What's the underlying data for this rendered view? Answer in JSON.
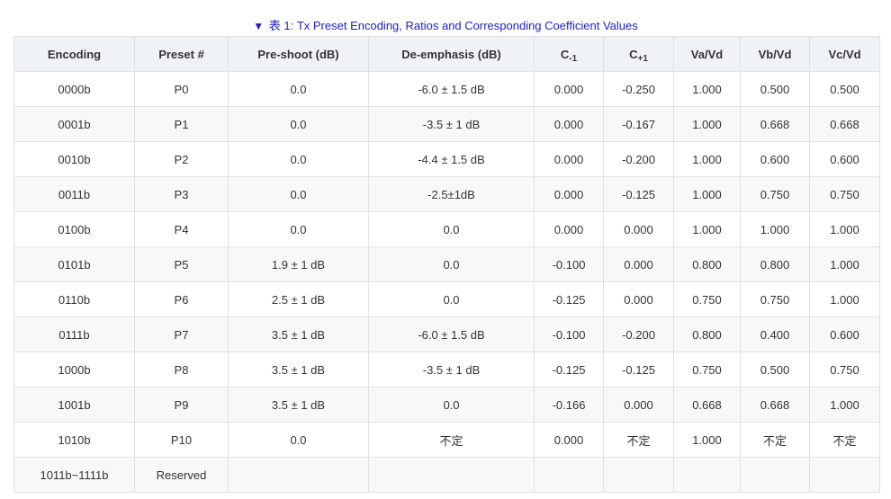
{
  "caption": {
    "arrow": "▼",
    "text": "表 1: Tx Preset Encoding, Ratios and Corresponding Coefficient Values"
  },
  "table": {
    "headers": {
      "encoding": "Encoding",
      "preset": "Preset #",
      "preshoot": "Pre-shoot (dB)",
      "deemphasis": "De-emphasis (dB)",
      "cminus_base": "C",
      "cminus_sub": "-1",
      "cplus_base": "C",
      "cplus_sub": "+1",
      "vavd": "Va/Vd",
      "vbvd": "Vb/Vd",
      "vcvd": "Vc/Vd"
    },
    "rows": [
      [
        "0000b",
        "P0",
        "0.0",
        "-6.0 ± 1.5 dB",
        "0.000",
        "-0.250",
        "1.000",
        "0.500",
        "0.500"
      ],
      [
        "0001b",
        "P1",
        "0.0",
        "-3.5 ± 1 dB",
        "0.000",
        "-0.167",
        "1.000",
        "0.668",
        "0.668"
      ],
      [
        "0010b",
        "P2",
        "0.0",
        "-4.4 ± 1.5 dB",
        "0.000",
        "-0.200",
        "1.000",
        "0.600",
        "0.600"
      ],
      [
        "0011b",
        "P3",
        "0.0",
        "-2.5±1dB",
        "0.000",
        "-0.125",
        "1.000",
        "0.750",
        "0.750"
      ],
      [
        "0100b",
        "P4",
        "0.0",
        "0.0",
        "0.000",
        "0.000",
        "1.000",
        "1.000",
        "1.000"
      ],
      [
        "0101b",
        "P5",
        "1.9 ± 1 dB",
        "0.0",
        "-0.100",
        "0.000",
        "0.800",
        "0.800",
        "1.000"
      ],
      [
        "0110b",
        "P6",
        "2.5 ± 1 dB",
        "0.0",
        "-0.125",
        "0.000",
        "0.750",
        "0.750",
        "1.000"
      ],
      [
        "0111b",
        "P7",
        "3.5 ± 1 dB",
        "-6.0 ± 1.5 dB",
        "-0.100",
        "-0.200",
        "0.800",
        "0.400",
        "0.600"
      ],
      [
        "1000b",
        "P8",
        "3.5 ± 1 dB",
        "-3.5 ± 1 dB",
        "-0.125",
        "-0.125",
        "0.750",
        "0.500",
        "0.750"
      ],
      [
        "1001b",
        "P9",
        "3.5 ± 1 dB",
        "0.0",
        "-0.166",
        "0.000",
        "0.668",
        "0.668",
        "1.000"
      ],
      [
        "1010b",
        "P10",
        "0.0",
        "不定",
        "0.000",
        "不定",
        "1.000",
        "不定",
        "不定"
      ],
      [
        "1011b~1111b",
        "Reserved",
        "",
        "",
        "",
        "",
        "",
        "",
        ""
      ]
    ]
  }
}
